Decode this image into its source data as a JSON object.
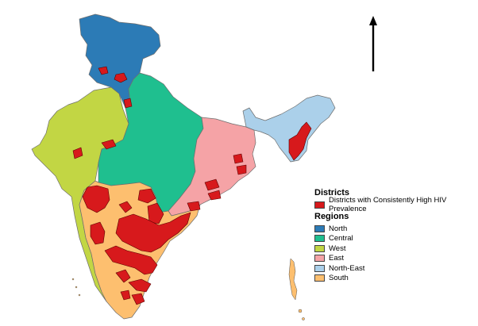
{
  "legend": {
    "districts_title": "Districts",
    "districts_items": [
      {
        "label": "Districts with Consistently High HIV Prevalence",
        "color": "#d7191c"
      }
    ],
    "regions_title": "Regions",
    "regions_items": [
      {
        "label": "North",
        "color": "#2c7bb6"
      },
      {
        "label": "Central",
        "color": "#1fbf8f"
      },
      {
        "label": "West",
        "color": "#c2d644"
      },
      {
        "label": "East",
        "color": "#f5a3a6"
      },
      {
        "label": "North-East",
        "color": "#abd0ea"
      },
      {
        "label": "South",
        "color": "#fdbf6f"
      }
    ]
  },
  "map": {
    "north_arrow_icon": "north-arrow-icon"
  }
}
